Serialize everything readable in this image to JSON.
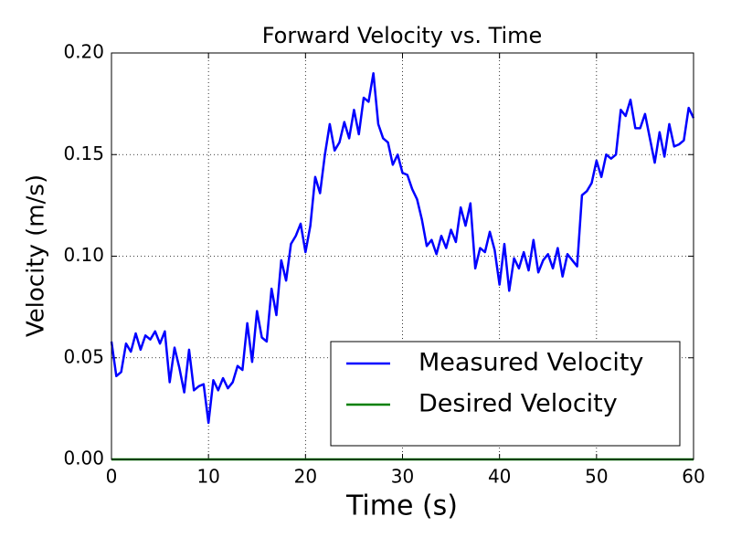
{
  "chart_data": {
    "type": "line",
    "title": "Forward Velocity vs. Time",
    "x_label": "Time (s)",
    "y_label": "Velocity (m/s)",
    "xlim": [
      0,
      60
    ],
    "xticks": [
      0,
      10,
      20,
      30,
      40,
      50,
      60
    ],
    "ylim": [
      0,
      0.2
    ],
    "yticks": [
      {
        "value": 0,
        "label": "0.00"
      },
      {
        "value": 0.05,
        "label": "0.05"
      },
      {
        "value": 0.1,
        "label": "0.10"
      },
      {
        "value": 0.15,
        "label": "0.15"
      },
      {
        "value": 0.2,
        "label": "0.20"
      }
    ],
    "grid": true,
    "legend": "lower right",
    "series": [
      {
        "name": "Measured Velocity",
        "color": "#0000ff",
        "x": [
          0,
          0.5,
          1,
          1.5,
          2,
          2.5,
          3,
          3.5,
          4,
          4.5,
          5,
          5.5,
          6,
          6.5,
          7,
          7.5,
          8,
          8.5,
          9,
          9.5,
          10,
          10.5,
          11,
          11.5,
          12,
          12.5,
          13,
          13.5,
          14,
          14.5,
          15,
          15.5,
          16,
          16.5,
          17,
          17.5,
          18,
          18.5,
          19,
          19.5,
          20,
          20.5,
          21,
          21.5,
          22,
          22.5,
          23,
          23.5,
          24,
          24.5,
          25,
          25.5,
          26,
          26.5,
          27,
          27.5,
          28,
          28.5,
          29,
          29.5,
          30,
          30.5,
          31,
          31.5,
          32,
          32.5,
          33,
          33.5,
          34,
          34.5,
          35,
          35.5,
          36,
          36.5,
          37,
          37.5,
          38,
          38.5,
          39,
          39.5,
          40,
          40.5,
          41,
          41.5,
          42,
          42.5,
          43,
          43.5,
          44,
          44.5,
          45,
          45.5,
          46,
          46.5,
          47,
          47.5,
          48,
          48.5,
          49,
          49.5,
          50,
          50.5,
          51,
          51.5,
          52,
          52.5,
          53,
          53.5,
          54,
          54.5,
          55,
          55.5,
          56,
          56.5,
          57,
          57.5,
          58,
          58.5,
          59,
          59.5,
          60
        ],
        "values": [
          0.058,
          0.041,
          0.043,
          0.057,
          0.053,
          0.062,
          0.054,
          0.061,
          0.059,
          0.063,
          0.057,
          0.063,
          0.038,
          0.055,
          0.045,
          0.033,
          0.054,
          0.034,
          0.036,
          0.037,
          0.018,
          0.039,
          0.034,
          0.04,
          0.035,
          0.038,
          0.046,
          0.044,
          0.067,
          0.048,
          0.073,
          0.06,
          0.058,
          0.084,
          0.071,
          0.098,
          0.088,
          0.106,
          0.11,
          0.116,
          0.102,
          0.115,
          0.139,
          0.131,
          0.15,
          0.165,
          0.152,
          0.156,
          0.166,
          0.158,
          0.172,
          0.16,
          0.178,
          0.176,
          0.19,
          0.165,
          0.158,
          0.156,
          0.145,
          0.15,
          0.141,
          0.14,
          0.133,
          0.128,
          0.118,
          0.105,
          0.108,
          0.101,
          0.11,
          0.104,
          0.113,
          0.107,
          0.124,
          0.115,
          0.126,
          0.094,
          0.104,
          0.102,
          0.112,
          0.103,
          0.086,
          0.106,
          0.083,
          0.099,
          0.094,
          0.102,
          0.093,
          0.108,
          0.092,
          0.098,
          0.101,
          0.094,
          0.104,
          0.09,
          0.101,
          0.098,
          0.095,
          0.13,
          0.132,
          0.136,
          0.147,
          0.139,
          0.15,
          0.148,
          0.15,
          0.172,
          0.169,
          0.177,
          0.163,
          0.163,
          0.17,
          0.158,
          0.146,
          0.161,
          0.149,
          0.165,
          0.154,
          0.155,
          0.157,
          0.173,
          0.168
        ]
      },
      {
        "name": "Desired Velocity",
        "color": "#008000",
        "x": [
          0,
          60
        ],
        "values": [
          0,
          0
        ]
      }
    ]
  }
}
